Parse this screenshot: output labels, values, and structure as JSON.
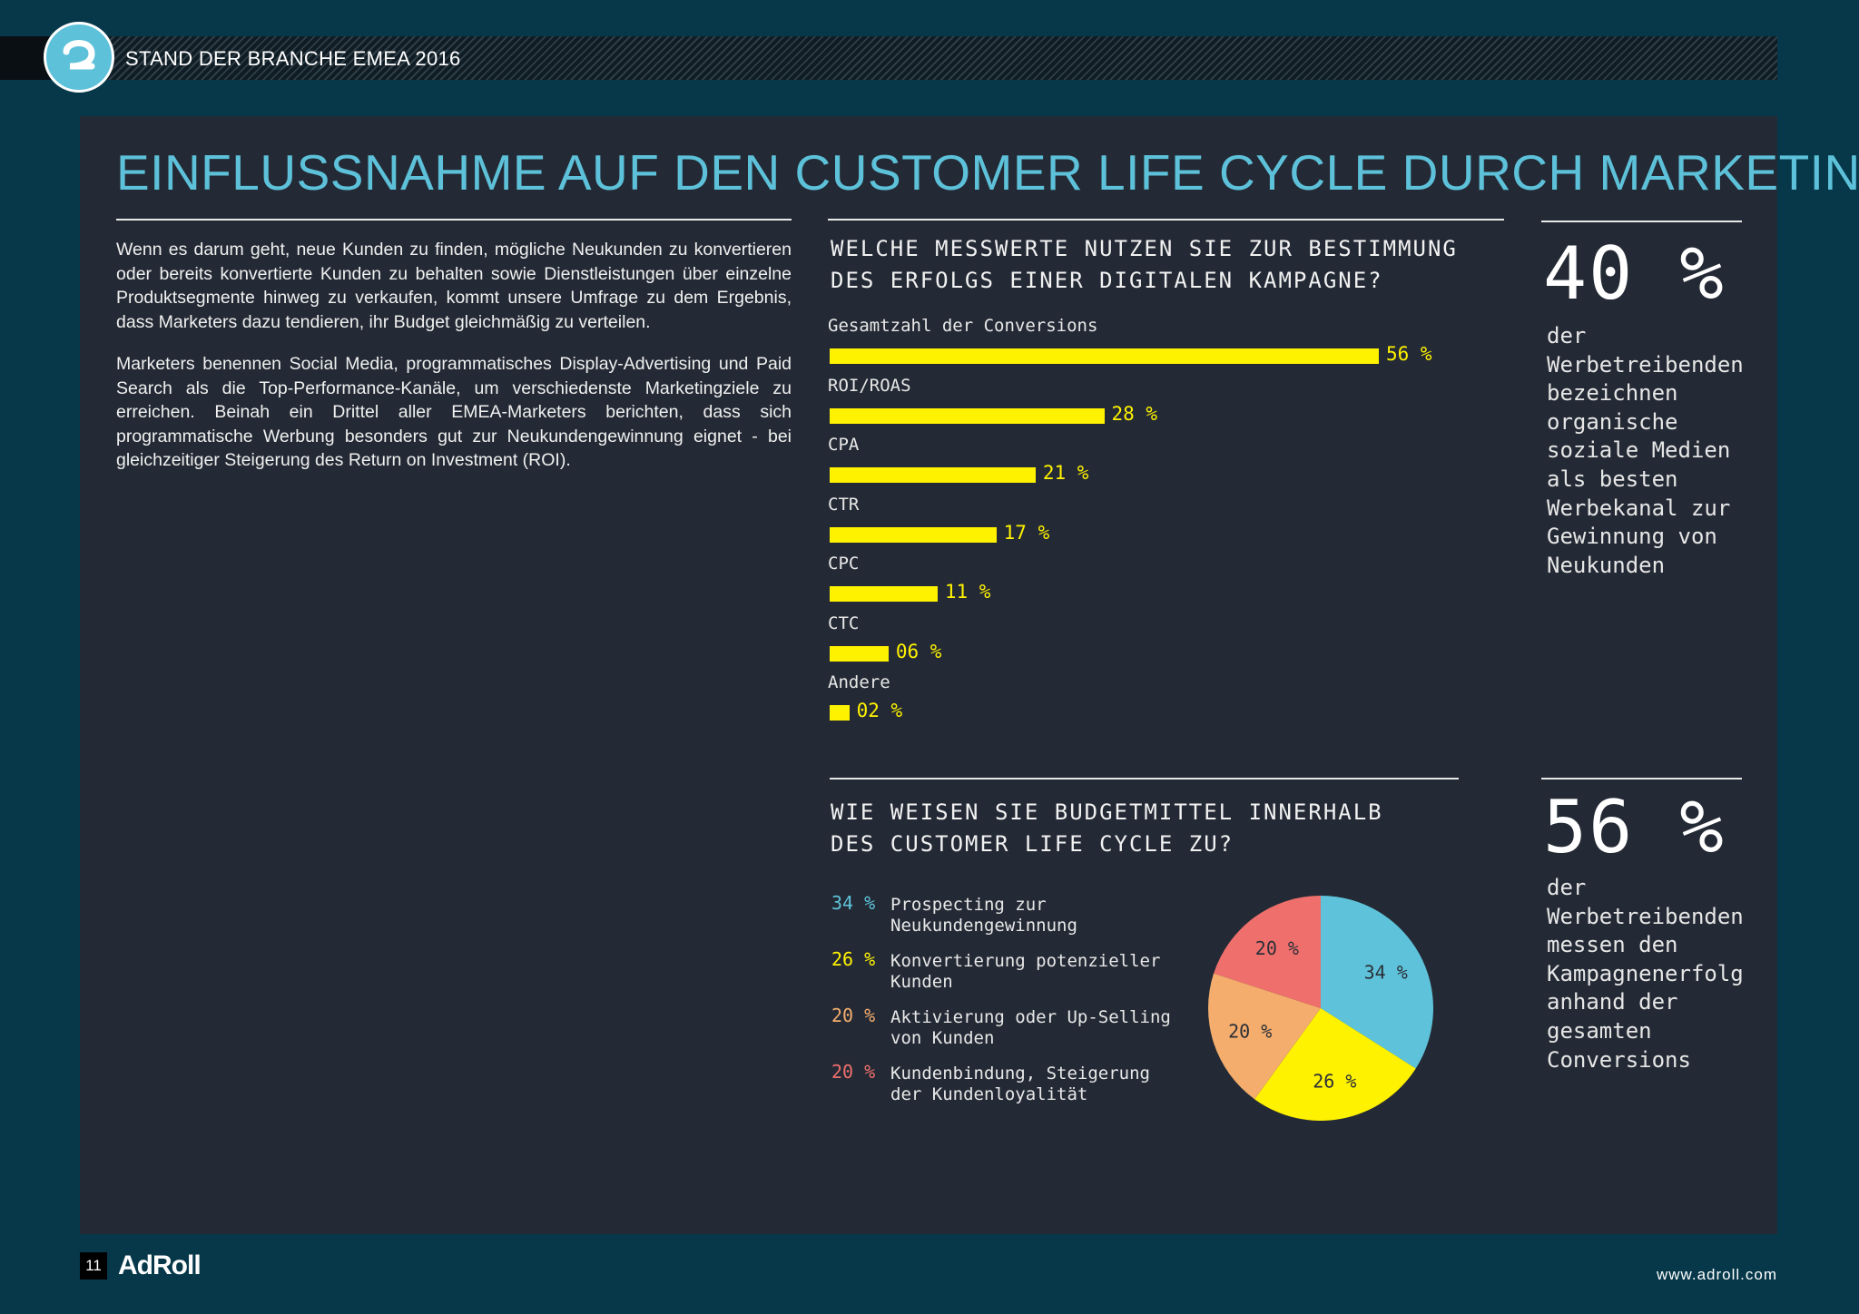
{
  "header": {
    "report_label": "STAND DER BRANCHE EMEA 2016"
  },
  "page": {
    "title": "EINFLUSSNAHME AUF DEN CUSTOMER LIFE CYCLE DURCH MARKETING",
    "intro_paragraphs": [
      "Wenn es darum geht, neue Kunden zu finden, mögliche Neukunden zu konvertieren oder bereits konvertierte Kunden zu behalten sowie Dienstleistungen über einzelne Produktsegmente hinweg zu verkaufen, kommt unsere Umfrage zu dem Ergebnis, dass Marketers dazu tendieren, ihr Budget gleichmäßig zu verteilen.",
      "Marketers benennen Social Media, programmatisches Display-Advertising und Paid Search als die Top-Performance-Kanäle, um verschiedenste Marketingziele zu erreichen. Beinah ein Drittel aller EMEA-Marketers berichten, dass sich programmatische Werbung besonders gut zur Neukundengewinnung eignet - bei gleichzeitiger Steigerung des Return on Investment (ROI)."
    ]
  },
  "stats": [
    {
      "value": "40 %",
      "text": "der Werbetreibenden bezeichnen organische soziale Medien als besten Werbekanal zur Gewinnung von Neukunden"
    },
    {
      "value": "56 %",
      "text": "der Werbetreibenden messen den Kampagnenerfolg anhand der gesamten Conversions"
    }
  ],
  "footer": {
    "page_number": "11",
    "brand": "AdRoll",
    "url": "www.adroll.com"
  },
  "colors": {
    "background": "#06384a",
    "panel": "#242a35",
    "accent": "#5dc1d9",
    "bar": "#fff200"
  },
  "chart_data": [
    {
      "type": "bar",
      "orientation": "horizontal",
      "title": "WELCHE MESSWERTE NUTZEN SIE ZUR BESTIMMUNG DES ERFOLGS EINER DIGITALEN KAMPAGNE?",
      "categories": [
        "Gesamtzahl der Conversions",
        "ROI/ROAS",
        "CPA",
        "CTR",
        "CPC",
        "CTC",
        "Andere"
      ],
      "values": [
        56,
        28,
        21,
        17,
        11,
        6,
        2
      ],
      "value_labels": [
        "56 %",
        "28 %",
        "21 %",
        "17 %",
        "11 %",
        "06 %",
        "02 %"
      ],
      "unit": "%",
      "grid": false,
      "color": "#fff200"
    },
    {
      "type": "pie",
      "title": "WIE WEISEN SIE BUDGETMITTEL INNERHALB DES CUSTOMER LIFE CYCLE ZU?",
      "labels": [
        "Prospecting zur Neukundengewinnung",
        "Konvertierung potenzieller Kunden",
        "Aktivierung oder Up-Selling von Kunden",
        "Kundenbindung, Steigerung der Kundenloyalität"
      ],
      "values": [
        34,
        26,
        20,
        20
      ],
      "value_labels": [
        "34 %",
        "26 %",
        "20 %",
        "20 %"
      ],
      "colors": [
        "#5ec3da",
        "#fff200",
        "#f4ad6c",
        "#ef6f6c"
      ],
      "legend_position": "left"
    }
  ]
}
